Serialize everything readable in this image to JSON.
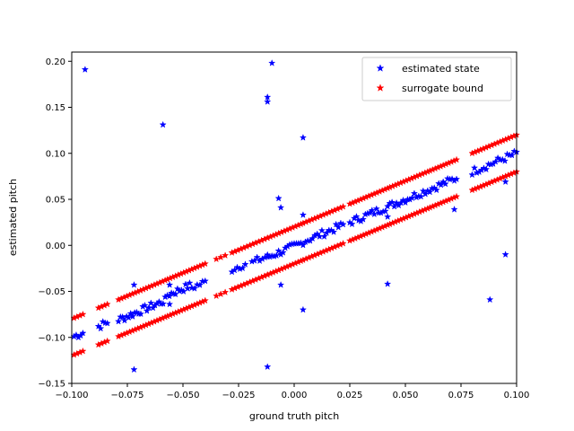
{
  "chart_data": {
    "type": "scatter",
    "title": "",
    "xlabel": "ground truth pitch",
    "ylabel": "estimated pitch",
    "xlim": [
      -0.1,
      0.1
    ],
    "ylim": [
      -0.15,
      0.21
    ],
    "xticks": [
      -0.1,
      -0.075,
      -0.05,
      -0.025,
      0.0,
      0.025,
      0.05,
      0.075,
      0.1
    ],
    "xtick_labels": [
      "−0.100",
      "−0.075",
      "−0.050",
      "−0.025",
      "0.000",
      "0.025",
      "0.050",
      "0.075",
      "0.100"
    ],
    "yticks": [
      -0.15,
      -0.1,
      -0.05,
      0.0,
      0.05,
      0.1,
      0.15,
      0.2
    ],
    "ytick_labels": [
      "−0.15",
      "−0.10",
      "−0.05",
      "0.00",
      "0.05",
      "0.10",
      "0.15",
      "0.20"
    ],
    "grid": false,
    "legend_position": "top-right",
    "series": [
      {
        "name": "estimated state",
        "color": "#0000ff",
        "marker": "star",
        "segments": [
          {
            "x0": -0.099,
            "x1": -0.095,
            "offset": 0.0,
            "n": 5
          },
          {
            "x0": -0.088,
            "x1": -0.084,
            "offset": 0.0,
            "n": 5
          },
          {
            "x0": -0.079,
            "x1": -0.058,
            "offset": -0.002,
            "n": 24
          },
          {
            "x0": -0.057,
            "x1": -0.047,
            "offset": 0.003,
            "n": 12
          },
          {
            "x0": -0.046,
            "x1": -0.04,
            "offset": 0.0,
            "n": 6
          },
          {
            "x0": -0.028,
            "x1": -0.022,
            "offset": 0.002,
            "n": 6
          },
          {
            "x0": -0.019,
            "x1": -0.012,
            "offset": 0.0,
            "n": 7
          },
          {
            "x0": -0.012,
            "x1": 0.003,
            "offset": -0.001,
            "n": 16
          },
          {
            "x0": 0.004,
            "x1": 0.022,
            "offset": 0.0,
            "n": 18
          },
          {
            "x0": 0.025,
            "x1": 0.042,
            "offset": 0.0,
            "n": 18
          },
          {
            "x0": 0.043,
            "x1": 0.06,
            "offset": 0.0,
            "n": 18
          },
          {
            "x0": 0.061,
            "x1": 0.073,
            "offset": 0.0,
            "n": 13
          },
          {
            "x0": 0.08,
            "x1": 0.1,
            "offset": 0.0,
            "n": 20
          }
        ],
        "outliers": [
          [
            -0.094,
            0.191
          ],
          [
            -0.059,
            0.131
          ],
          [
            -0.01,
            0.198
          ],
          [
            -0.012,
            0.161
          ],
          [
            -0.012,
            0.156
          ],
          [
            0.004,
            0.117
          ],
          [
            -0.007,
            0.051
          ],
          [
            -0.006,
            0.041
          ],
          [
            0.004,
            0.033
          ],
          [
            -0.072,
            -0.043
          ],
          [
            -0.056,
            -0.043
          ],
          [
            -0.056,
            -0.064
          ],
          [
            -0.006,
            -0.043
          ],
          [
            0.004,
            -0.07
          ],
          [
            -0.072,
            -0.135
          ],
          [
            -0.012,
            -0.132
          ],
          [
            0.042,
            -0.042
          ],
          [
            0.042,
            0.031
          ],
          [
            0.072,
            0.039
          ],
          [
            0.088,
            -0.059
          ],
          [
            0.095,
            -0.01
          ],
          [
            0.095,
            0.069
          ]
        ]
      },
      {
        "name": "surrogate bound",
        "color": "#ff0000",
        "marker": "star",
        "bound_offset": 0.02,
        "segments": [
          {
            "x0": -0.099,
            "x1": -0.095,
            "n": 4
          },
          {
            "x0": -0.088,
            "x1": -0.084,
            "n": 4
          },
          {
            "x0": -0.079,
            "x1": -0.058,
            "n": 18
          },
          {
            "x0": -0.057,
            "x1": -0.04,
            "n": 15
          },
          {
            "x0": -0.035,
            "x1": -0.031,
            "n": 3
          },
          {
            "x0": -0.028,
            "x1": -0.012,
            "n": 13
          },
          {
            "x0": -0.012,
            "x1": 0.003,
            "n": 13
          },
          {
            "x0": 0.004,
            "x1": 0.022,
            "n": 15
          },
          {
            "x0": 0.025,
            "x1": 0.042,
            "n": 15
          },
          {
            "x0": 0.043,
            "x1": 0.06,
            "n": 15
          },
          {
            "x0": 0.061,
            "x1": 0.073,
            "n": 11
          },
          {
            "x0": 0.08,
            "x1": 0.1,
            "n": 17
          }
        ]
      }
    ]
  }
}
